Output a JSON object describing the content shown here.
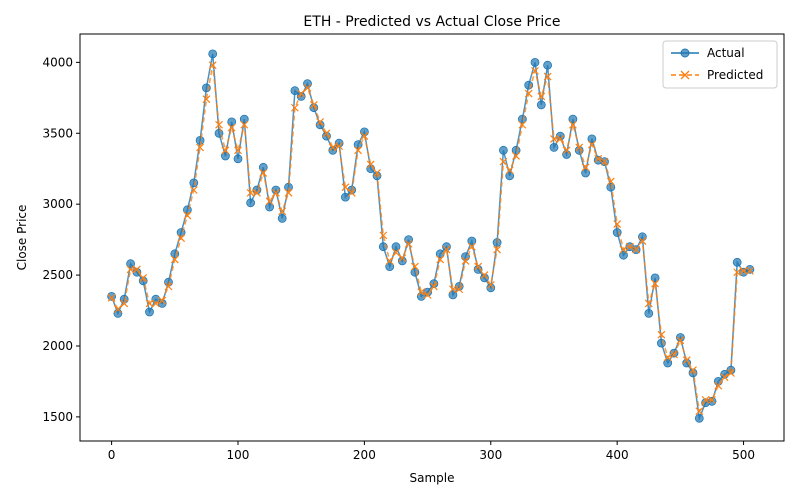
{
  "chart_data": {
    "type": "line",
    "title": "ETH - Predicted vs Actual Close Price",
    "xlabel": "Sample",
    "ylabel": "Close Price",
    "xlim": [
      -25,
      532
    ],
    "ylim": [
      1330,
      4200
    ],
    "xticks": [
      0,
      100,
      200,
      300,
      400,
      500
    ],
    "yticks": [
      1500,
      2000,
      2500,
      3000,
      3500,
      4000
    ],
    "grid": false,
    "legend_position": "top-right",
    "x_step": 5,
    "series": [
      {
        "name": "Actual",
        "color": "#1f77b4",
        "style": "solid",
        "marker": "circle",
        "values": [
          2350,
          2230,
          2330,
          2580,
          2520,
          2460,
          2240,
          2330,
          2300,
          2450,
          2650,
          2800,
          2960,
          3150,
          3450,
          3820,
          4060,
          3500,
          3340,
          3580,
          3320,
          3600,
          3010,
          3100,
          3260,
          2980,
          3100,
          2900,
          3120,
          3800,
          3760,
          3850,
          3680,
          3560,
          3480,
          3380,
          3430,
          3050,
          3100,
          3420,
          3510,
          3250,
          3200,
          2700,
          2560,
          2700,
          2600,
          2750,
          2520,
          2350,
          2380,
          2440,
          2650,
          2700,
          2360,
          2420,
          2630,
          2740,
          2540,
          2480,
          2410,
          2730,
          3380,
          3200,
          3380,
          3600,
          3840,
          4000,
          3700,
          3980,
          3400,
          3480,
          3350,
          3600,
          3380,
          3220,
          3460,
          3310,
          3300,
          3120,
          2800,
          2640,
          2700,
          2680,
          2770,
          2230,
          2480,
          2020,
          1880,
          1950,
          2060,
          1880,
          1810,
          1490,
          1600,
          1610,
          1750,
          1800,
          1830,
          2590,
          2520,
          2540
        ]
      },
      {
        "name": "Predicted",
        "color": "#ff7f0e",
        "style": "dashed",
        "marker": "x",
        "values": [
          2340,
          2260,
          2300,
          2540,
          2540,
          2480,
          2300,
          2300,
          2320,
          2420,
          2610,
          2760,
          2920,
          3100,
          3400,
          3740,
          3980,
          3560,
          3380,
          3540,
          3380,
          3560,
          3080,
          3080,
          3220,
          3020,
          3080,
          2950,
          3080,
          3680,
          3780,
          3820,
          3700,
          3580,
          3500,
          3400,
          3410,
          3120,
          3080,
          3380,
          3480,
          3280,
          3220,
          2780,
          2600,
          2660,
          2620,
          2720,
          2560,
          2380,
          2360,
          2420,
          2610,
          2680,
          2400,
          2400,
          2600,
          2700,
          2560,
          2500,
          2430,
          2680,
          3300,
          3240,
          3340,
          3560,
          3780,
          3940,
          3760,
          3900,
          3460,
          3460,
          3380,
          3560,
          3400,
          3260,
          3420,
          3320,
          3300,
          3160,
          2860,
          2680,
          2700,
          2680,
          2740,
          2300,
          2440,
          2080,
          1920,
          1940,
          2040,
          1900,
          1830,
          1540,
          1620,
          1620,
          1720,
          1780,
          1810,
          2520,
          2530,
          2530
        ]
      }
    ]
  }
}
